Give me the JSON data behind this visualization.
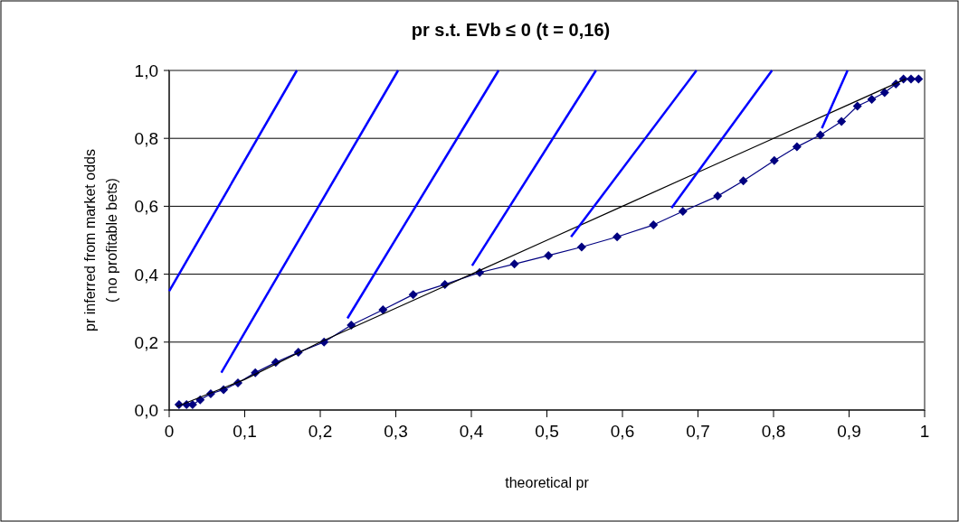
{
  "chart_data": {
    "type": "line",
    "title": "pr s.t. EVb ≤ 0 (t = 0,16)",
    "xlabel": "theoretical pr",
    "ylabel": "pr inferred from market odds\n( no profitable bets)",
    "xlim": [
      0,
      1
    ],
    "ylim": [
      0,
      1
    ],
    "xticks": [
      0,
      {
        "value": 0.1,
        "label": "0,1"
      },
      {
        "value": 0.2,
        "label": "0,2"
      },
      {
        "value": 0.3,
        "label": "0,3"
      },
      {
        "value": 0.4,
        "label": "0,4"
      },
      {
        "value": 0.5,
        "label": "0,5"
      },
      {
        "value": 0.6,
        "label": "0,6"
      },
      {
        "value": 0.7,
        "label": "0,7"
      },
      {
        "value": 0.8,
        "label": "0,8"
      },
      {
        "value": 0.9,
        "label": "0,9"
      },
      1
    ],
    "yticks": [
      {
        "value": 0,
        "label": "0,0"
      },
      {
        "value": 0.2,
        "label": "0,2"
      },
      {
        "value": 0.4,
        "label": "0,4"
      },
      {
        "value": 0.6,
        "label": "0,6"
      },
      {
        "value": 0.8,
        "label": "0,8"
      },
      {
        "value": 1,
        "label": "1,0"
      }
    ],
    "grid": "y",
    "marker": "diamond",
    "series": [
      {
        "color": "#000080",
        "x": [
          0.013,
          0.023,
          0.031,
          0.041,
          0.055,
          0.072,
          0.091,
          0.114,
          0.141,
          0.171,
          0.205,
          0.241,
          0.283,
          0.323,
          0.365,
          0.411,
          0.457,
          0.502,
          0.546,
          0.593,
          0.641,
          0.68,
          0.726,
          0.76,
          0.801,
          0.831,
          0.862,
          0.89,
          0.911,
          0.93,
          0.947,
          0.962,
          0.972,
          0.982,
          0.992
        ],
        "values": [
          0.016,
          0.016,
          0.016,
          0.03,
          0.048,
          0.06,
          0.08,
          0.11,
          0.14,
          0.17,
          0.2,
          0.25,
          0.295,
          0.34,
          0.37,
          0.405,
          0.43,
          0.455,
          0.48,
          0.51,
          0.545,
          0.585,
          0.63,
          0.675,
          0.735,
          0.775,
          0.81,
          0.85,
          0.895,
          0.915,
          0.935,
          0.96,
          0.975,
          0.975,
          0.975
        ]
      },
      {
        "color": "#000000",
        "marker": "none",
        "x": [
          0.01,
          0.1,
          0.2,
          0.3,
          0.4,
          0.5,
          0.6,
          0.7,
          0.8,
          0.9,
          0.975
        ],
        "values": [
          0.01,
          0.09,
          0.2,
          0.3,
          0.4,
          0.5,
          0.6,
          0.7,
          0.8,
          0.9,
          0.975
        ]
      },
      {
        "color": "#0000ff",
        "marker": "none",
        "x": [
          0.0,
          0.169
        ],
        "values": [
          0.35,
          1.0
        ]
      },
      {
        "color": "#0000ff",
        "marker": "none",
        "x": [
          0.069,
          0.303
        ],
        "values": [
          0.11,
          1.0
        ]
      },
      {
        "color": "#0000ff",
        "marker": "none",
        "x": [
          0.236,
          0.436
        ],
        "values": [
          0.27,
          1.0
        ]
      },
      {
        "color": "#0000ff",
        "marker": "none",
        "x": [
          0.401,
          0.565
        ],
        "values": [
          0.425,
          1.0
        ]
      },
      {
        "color": "#0000ff",
        "marker": "none",
        "x": [
          0.532,
          0.698
        ],
        "values": [
          0.51,
          1.0
        ]
      },
      {
        "color": "#0000ff",
        "marker": "none",
        "x": [
          0.665,
          0.798
        ],
        "values": [
          0.595,
          1.0
        ]
      },
      {
        "color": "#0000ff",
        "marker": "none",
        "x": [
          0.864,
          0.898
        ],
        "values": [
          0.83,
          1.0
        ]
      }
    ]
  }
}
